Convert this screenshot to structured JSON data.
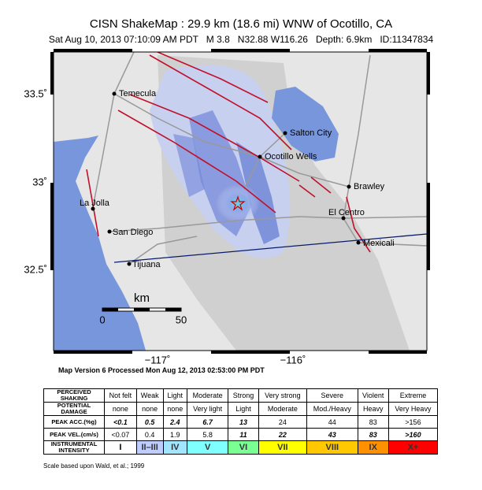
{
  "header": {
    "title": "CISN ShakeMap : 29.9 km (18.6 mi) WNW of Ocotillo, CA",
    "subtitle": "Sat Aug 10, 2013 07:10:09 AM PDT   M 3.8   N32.88 W116.26   Depth: 6.9km   ID:11347834"
  },
  "map": {
    "lat_labels": [
      "33.5˚",
      "33˚",
      "32.5˚"
    ],
    "lon_labels": [
      "−117˚",
      "−116˚"
    ],
    "places": [
      "Temecula",
      "Salton City",
      "Ocotillo Wells",
      "Brawley",
      "La Jolla",
      "San Diego",
      "El Centro",
      "Mexicali",
      "Tijuana"
    ],
    "scale": {
      "unit": "km",
      "start": "0",
      "end": "50"
    }
  },
  "version_note": "Map Version 6 Processed Mon Aug 12, 2013 02:53:00 PM PDT",
  "table": {
    "rows": [
      [
        "PERCEIVED SHAKING",
        "Not felt",
        "Weak",
        "Light",
        "Moderate",
        "Strong",
        "Very strong",
        "Severe",
        "Violent",
        "Extreme"
      ],
      [
        "POTENTIAL DAMAGE",
        "none",
        "none",
        "none",
        "Very light",
        "Light",
        "Moderate",
        "Mod./Heavy",
        "Heavy",
        "Very Heavy"
      ],
      [
        "PEAK ACC.(%g)",
        "<0.1",
        "0.5",
        "2.4",
        "6.7",
        "13",
        "24",
        "44",
        "83",
        ">156"
      ],
      [
        "PEAK VEL.(cm/s)",
        "<0.07",
        "0.4",
        "1.9",
        "5.8",
        "11",
        "22",
        "43",
        "83",
        ">160"
      ],
      [
        "INSTRUMENTAL INTENSITY",
        "I",
        "II–III",
        "IV",
        "V",
        "VI",
        "VII",
        "VIII",
        "IX",
        "X+"
      ]
    ]
  },
  "credit": "Scale based upon Wald, et al.; 1999"
}
